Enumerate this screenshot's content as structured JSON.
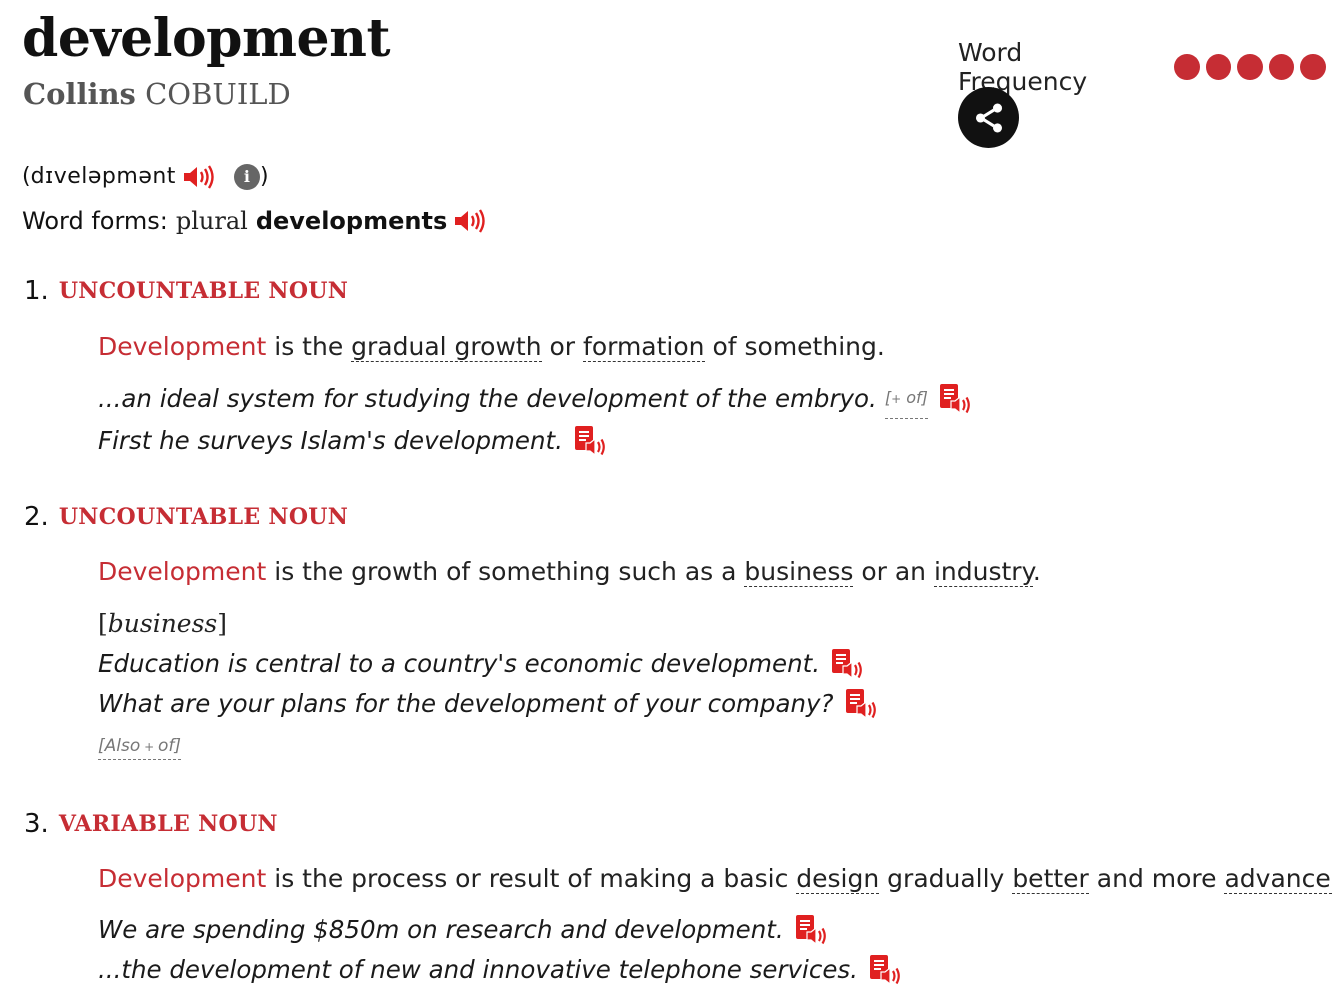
{
  "entry": {
    "headword": "development",
    "brand": {
      "part1": "Collins",
      "part2": "COBUILD"
    },
    "frequency": {
      "label": "Word Frequency",
      "dots": 5
    },
    "share": {
      "icon": "share-icon"
    },
    "pronunciation": {
      "open": "(",
      "ipa": "dɪveləpmənt",
      "close": ")"
    },
    "word_forms": {
      "label": "Word forms:",
      "grammar": "plural",
      "form": "developments"
    }
  },
  "senses": [
    {
      "number": "1.",
      "pos": "UNCOUNTABLE NOUN",
      "definition": {
        "headword": "Development",
        "parts": [
          " is the ",
          "gradual growth",
          " or ",
          "formation",
          " of something."
        ]
      },
      "examples": [
        {
          "text": "...an ideal system for studying the development of the embryo.",
          "tag_open": "[",
          "tag_plus": "+",
          "tag_word": " of",
          "tag_close": "]"
        },
        {
          "text": "First he surveys Islam's development."
        }
      ]
    },
    {
      "number": "2.",
      "pos": "UNCOUNTABLE NOUN",
      "definition": {
        "headword": "Development",
        "parts": [
          " is the growth of something such as a ",
          "business",
          " or an ",
          "industry",
          "."
        ]
      },
      "bracket": {
        "open": "[",
        "word": "business",
        "close": "]"
      },
      "examples": [
        {
          "text": "Education is central to a country's economic development."
        },
        {
          "text": "What are your plans for the development of your company?"
        }
      ],
      "also": {
        "open": "[",
        "word": "Also",
        "plus": " + ",
        "of": "of",
        "close": "]"
      }
    },
    {
      "number": "3.",
      "pos": "VARIABLE NOUN",
      "definition": {
        "headword": "Development",
        "parts": [
          " is the process or result of making a basic ",
          "design",
          " gradually ",
          "better",
          " and more ",
          "advanced",
          "."
        ]
      },
      "examples": [
        {
          "text": "We are spending $850m on research and development."
        },
        {
          "text": "...the development of new and innovative telephone services."
        }
      ]
    }
  ],
  "colors": {
    "accent": "#c62d34",
    "text": "#1a1a1a",
    "muted": "#777777"
  }
}
